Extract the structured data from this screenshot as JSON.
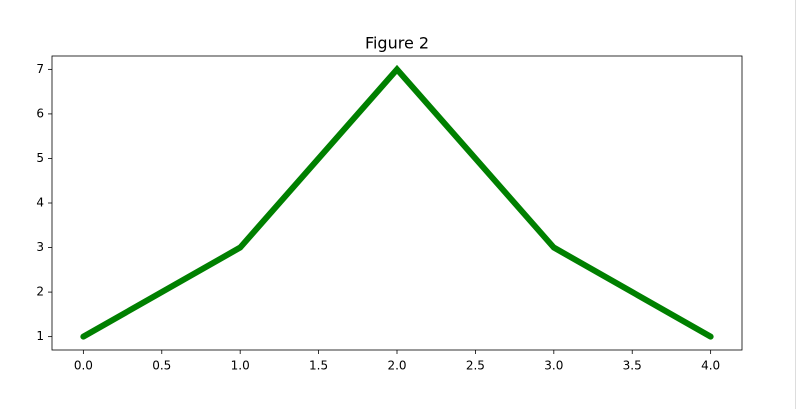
{
  "chart_data": {
    "type": "line",
    "title": "Figure 2",
    "x": [
      0,
      1,
      2,
      3,
      4
    ],
    "series": [
      {
        "color": "#008000",
        "values": [
          1,
          3,
          7,
          3,
          1
        ]
      }
    ],
    "xlim": [
      -0.2,
      4.2
    ],
    "xticks": [
      {
        "value": 0,
        "label": "0.0"
      },
      {
        "value": 0.5,
        "label": "0.5"
      },
      {
        "value": 1,
        "label": "1.0"
      },
      {
        "value": 1.5,
        "label": "1.5"
      },
      {
        "value": 2,
        "label": "2.0"
      },
      {
        "value": 2.5,
        "label": "2.5"
      },
      {
        "value": 3,
        "label": "3.0"
      },
      {
        "value": 3.5,
        "label": "3.5"
      },
      {
        "value": 4,
        "label": "4.0"
      }
    ],
    "ylim": [
      0.7,
      7.3
    ],
    "yticks": [
      1,
      2,
      3,
      4,
      5,
      6,
      7
    ],
    "grid": false
  }
}
